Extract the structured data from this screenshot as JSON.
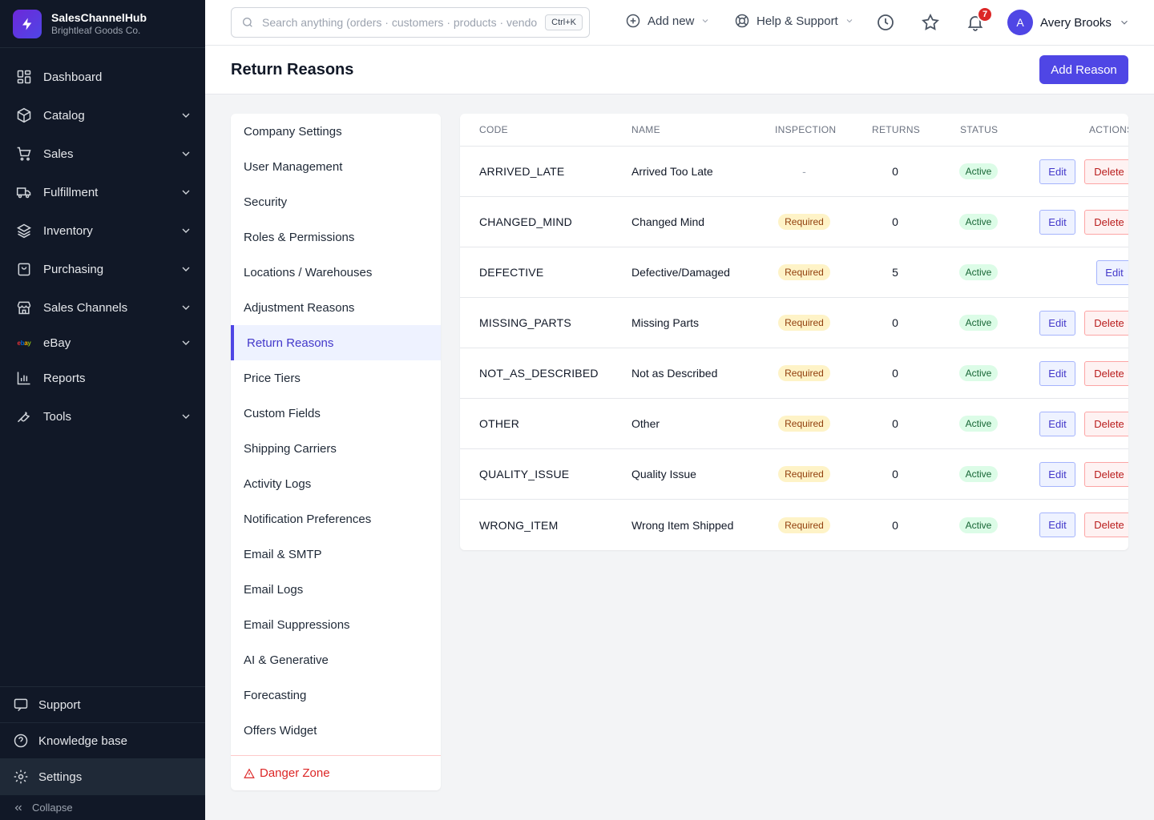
{
  "brand": {
    "name": "SalesChannelHub",
    "company": "Brightleaf Goods Co."
  },
  "sidebar": {
    "items": [
      {
        "label": "Dashboard"
      },
      {
        "label": "Catalog"
      },
      {
        "label": "Sales"
      },
      {
        "label": "Fulfillment"
      },
      {
        "label": "Inventory"
      },
      {
        "label": "Purchasing"
      },
      {
        "label": "Sales Channels"
      },
      {
        "label": "eBay"
      },
      {
        "label": "Reports"
      },
      {
        "label": "Tools"
      }
    ],
    "ebay_logo": [
      "e",
      "b",
      "a",
      "y"
    ],
    "bottom": {
      "support": "Support",
      "knowledge": "Knowledge base",
      "settings": "Settings",
      "collapse": "Collapse"
    }
  },
  "topbar": {
    "search_placeholder": "Search anything (orders · customers · products · vendors)",
    "shortcut": "Ctrl+K",
    "add_new": "Add new",
    "help": "Help & Support",
    "notification_count": "7",
    "user_initial": "A",
    "user_name": "Avery Brooks"
  },
  "page": {
    "title": "Return Reasons",
    "add_button": "Add Reason"
  },
  "settings_menu": {
    "items": [
      "Company Settings",
      "User Management",
      "Security",
      "Roles & Permissions",
      "Locations / Warehouses",
      "Adjustment Reasons",
      "Return Reasons",
      "Price Tiers",
      "Custom Fields",
      "Shipping Carriers",
      "Activity Logs",
      "Notification Preferences",
      "Email & SMTP",
      "Email Logs",
      "Email Suppressions",
      "AI & Generative",
      "Forecasting",
      "Offers Widget"
    ],
    "active_index": 6,
    "danger": "Danger Zone"
  },
  "table": {
    "columns": {
      "code": "CODE",
      "name": "NAME",
      "inspection": "INSPECTION",
      "returns": "RETURNS",
      "status": "STATUS",
      "actions": "ACTIONS"
    },
    "edit_label": "Edit",
    "delete_label": "Delete",
    "rows": [
      {
        "code": "ARRIVED_LATE",
        "name": "Arrived Too Late",
        "inspection": "-",
        "returns": "0",
        "status": "Active",
        "deletable": true
      },
      {
        "code": "CHANGED_MIND",
        "name": "Changed Mind",
        "inspection": "Required",
        "returns": "0",
        "status": "Active",
        "deletable": true
      },
      {
        "code": "DEFECTIVE",
        "name": "Defective/Damaged",
        "inspection": "Required",
        "returns": "5",
        "status": "Active",
        "deletable": false
      },
      {
        "code": "MISSING_PARTS",
        "name": "Missing Parts",
        "inspection": "Required",
        "returns": "0",
        "status": "Active",
        "deletable": true
      },
      {
        "code": "NOT_AS_DESCRIBED",
        "name": "Not as Described",
        "inspection": "Required",
        "returns": "0",
        "status": "Active",
        "deletable": true
      },
      {
        "code": "OTHER",
        "name": "Other",
        "inspection": "Required",
        "returns": "0",
        "status": "Active",
        "deletable": true
      },
      {
        "code": "QUALITY_ISSUE",
        "name": "Quality Issue",
        "inspection": "Required",
        "returns": "0",
        "status": "Active",
        "deletable": true
      },
      {
        "code": "WRONG_ITEM",
        "name": "Wrong Item Shipped",
        "inspection": "Required",
        "returns": "0",
        "status": "Active",
        "deletable": true
      }
    ]
  },
  "colors": {
    "sidebar_bg": "#111827",
    "accent": "#4f46e5",
    "danger": "#dc2626",
    "required_bg": "#fef3c7",
    "active_bg": "#dcfce7"
  }
}
